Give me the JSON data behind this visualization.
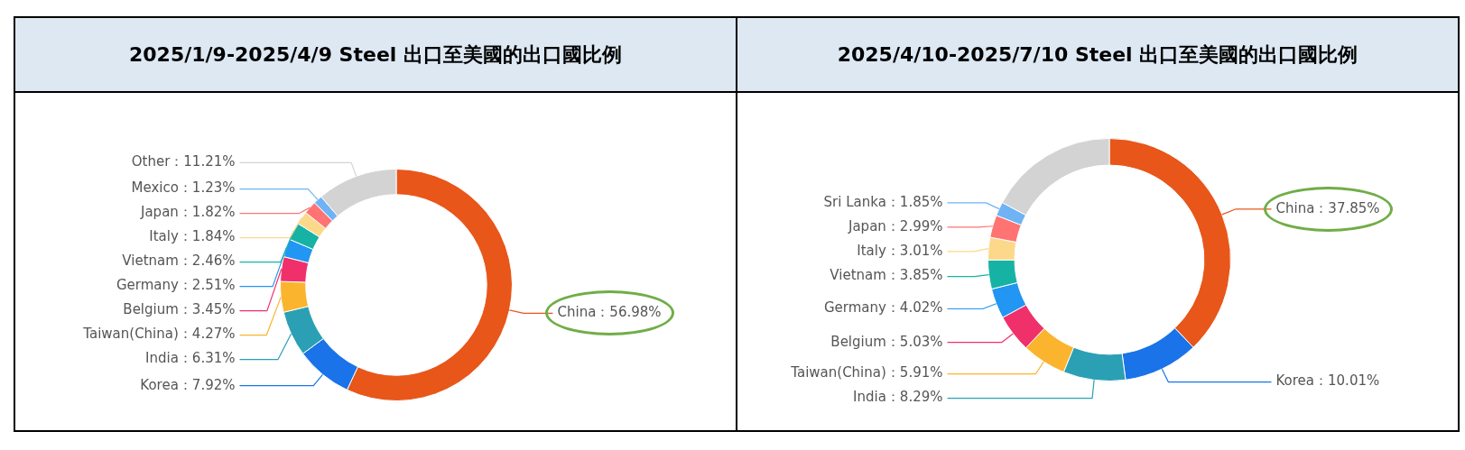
{
  "chart_data": [
    {
      "type": "donut",
      "title": "2025/1/9-2025/4/9 Steel 出口至美國的出口國比例",
      "categories": [
        "China",
        "Korea",
        "India",
        "Taiwan(China)",
        "Belgium",
        "Germany",
        "Vietnam",
        "Italy",
        "Japan",
        "Mexico",
        "Other"
      ],
      "values": [
        56.98,
        7.92,
        6.31,
        4.27,
        3.45,
        2.51,
        2.46,
        1.84,
        1.82,
        1.23,
        11.21
      ],
      "colors": [
        "#e8561a",
        "#1a73e8",
        "#2ba0b4",
        "#fbb42d",
        "#f0306a",
        "#2196f3",
        "#16b3a5",
        "#fcd98a",
        "#ff7373",
        "#6fb3f5",
        "#d3d3d3"
      ],
      "value_labels": [
        "56.98%",
        "7.92%",
        "6.31%",
        "4.27%",
        "3.45%",
        "2.51%",
        "2.46%",
        "1.84%",
        "1.82%",
        "1.23%",
        "11.21%"
      ]
    },
    {
      "type": "donut",
      "title": "2025/4/10-2025/7/10 Steel 出口至美國的出口國比例",
      "categories": [
        "China",
        "Korea",
        "India",
        "Taiwan(China)",
        "Belgium",
        "Germany",
        "Vietnam",
        "Italy",
        "Japan",
        "Sri Lanka",
        null
      ],
      "values": [
        37.85,
        10.01,
        8.29,
        5.91,
        5.03,
        4.02,
        3.85,
        3.01,
        2.99,
        1.85,
        17.19
      ],
      "colors": [
        "#e8561a",
        "#1a73e8",
        "#2ba0b4",
        "#fbb42d",
        "#f0306a",
        "#2196f3",
        "#16b3a5",
        "#fcd98a",
        "#ff7373",
        "#6fb3f5",
        "#d3d3d3"
      ],
      "value_labels": [
        "37.85%",
        "10.01%",
        "8.29%",
        "5.91%",
        "5.03%",
        "4.02%",
        "3.85%",
        "3.01%",
        "2.99%",
        "1.85%",
        null
      ]
    }
  ]
}
